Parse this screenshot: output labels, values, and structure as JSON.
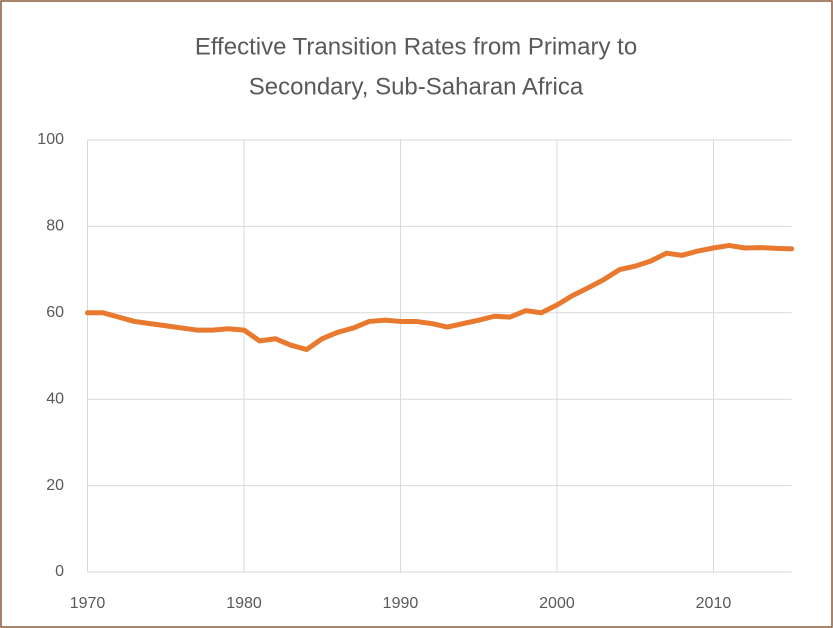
{
  "chart_data": {
    "type": "line",
    "title": [
      "Effective Transition Rates from Primary to",
      "Secondary, Sub-Saharan Africa"
    ],
    "x": [
      1970,
      1971,
      1972,
      1973,
      1974,
      1975,
      1976,
      1977,
      1978,
      1979,
      1980,
      1981,
      1982,
      1983,
      1984,
      1985,
      1986,
      1987,
      1988,
      1989,
      1990,
      1991,
      1992,
      1993,
      1994,
      1995,
      1996,
      1997,
      1998,
      1999,
      2000,
      2001,
      2002,
      2003,
      2004,
      2005,
      2006,
      2007,
      2008,
      2009,
      2010,
      2011,
      2012,
      2013,
      2014,
      2015
    ],
    "series": [
      {
        "color": "#E8792E",
        "values": [
          60,
          60,
          59,
          58,
          57.5,
          57,
          56.5,
          56,
          56,
          56.3,
          56,
          53.5,
          54,
          52.5,
          51.5,
          54,
          55.5,
          56.5,
          58,
          58.3,
          58,
          58,
          57.5,
          56.7,
          57.5,
          58.3,
          59.2,
          59,
          60.5,
          60,
          61.8,
          64,
          65.8,
          67.7,
          70,
          70.8,
          72,
          73.8,
          73.3,
          74.3,
          75,
          75.6,
          75,
          75.1,
          74.9,
          74.8
        ]
      }
    ],
    "xlim": [
      1970,
      2015
    ],
    "xticks": [
      1970,
      1980,
      1990,
      2000,
      2010
    ],
    "ylim": [
      0,
      100
    ],
    "yticks": [
      0,
      20,
      40,
      60,
      80,
      100
    ],
    "grid": true
  }
}
